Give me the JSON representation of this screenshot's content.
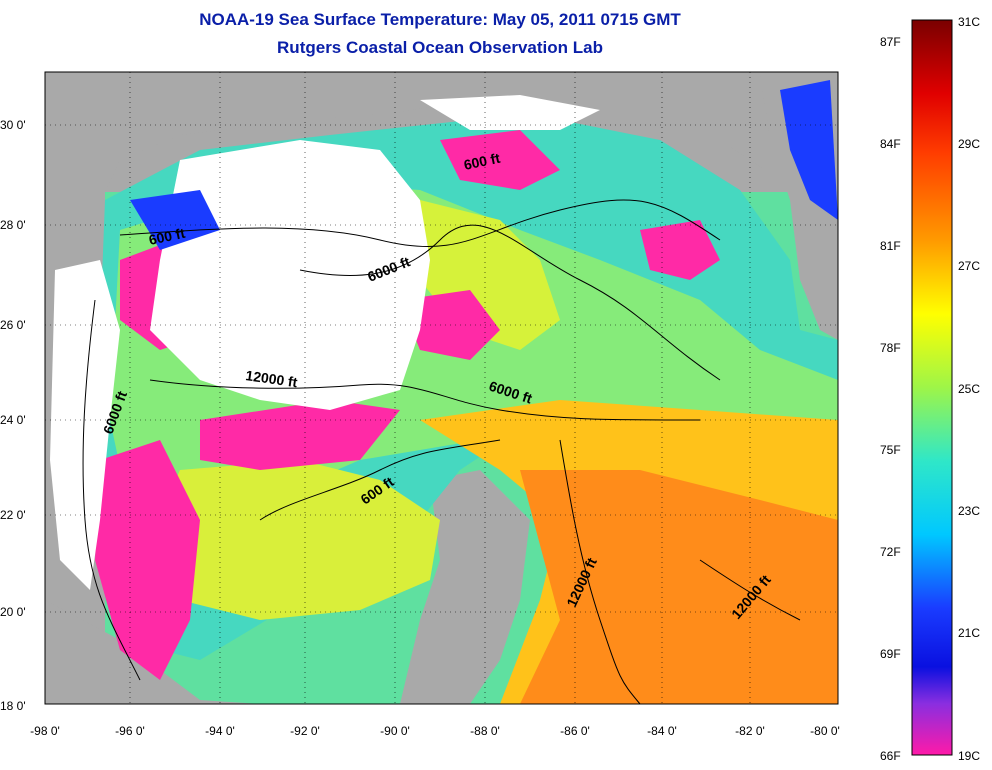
{
  "title": "NOAA-19 Sea Surface Temperature:  May 05, 2011 0715 GMT",
  "subtitle": "Rutgers Coastal Ocean Observation Lab",
  "map": {
    "lon_ticks": [
      "-98 0'",
      "-96 0'",
      "-94 0'",
      "-92 0'",
      "-90 0'",
      "-88 0'",
      "-86 0'",
      "-84 0'",
      "-82 0'",
      "-80 0'"
    ],
    "lat_ticks": [
      "30 0'",
      "28 0'",
      "26 0'",
      "24 0'",
      "22 0'",
      "20 0'",
      "18 0'"
    ],
    "contour_labels": [
      "600 ft",
      "600 ft",
      "6000 ft",
      "12000 ft",
      "6000 ft",
      "6000 ft",
      "600 ft",
      "12000 ft",
      "12000 ft"
    ],
    "colors": {
      "land": "#a9a9a9",
      "cloud": "#ffffff",
      "cold": "#ff2aa6",
      "warm": "#ff8c1a"
    }
  },
  "colorbar": {
    "celsius": [
      "31C",
      "29C",
      "27C",
      "25C",
      "23C",
      "21C",
      "19C"
    ],
    "fahrenheit": [
      "87F",
      "84F",
      "81F",
      "78F",
      "75F",
      "72F",
      "69F",
      "66F"
    ]
  }
}
